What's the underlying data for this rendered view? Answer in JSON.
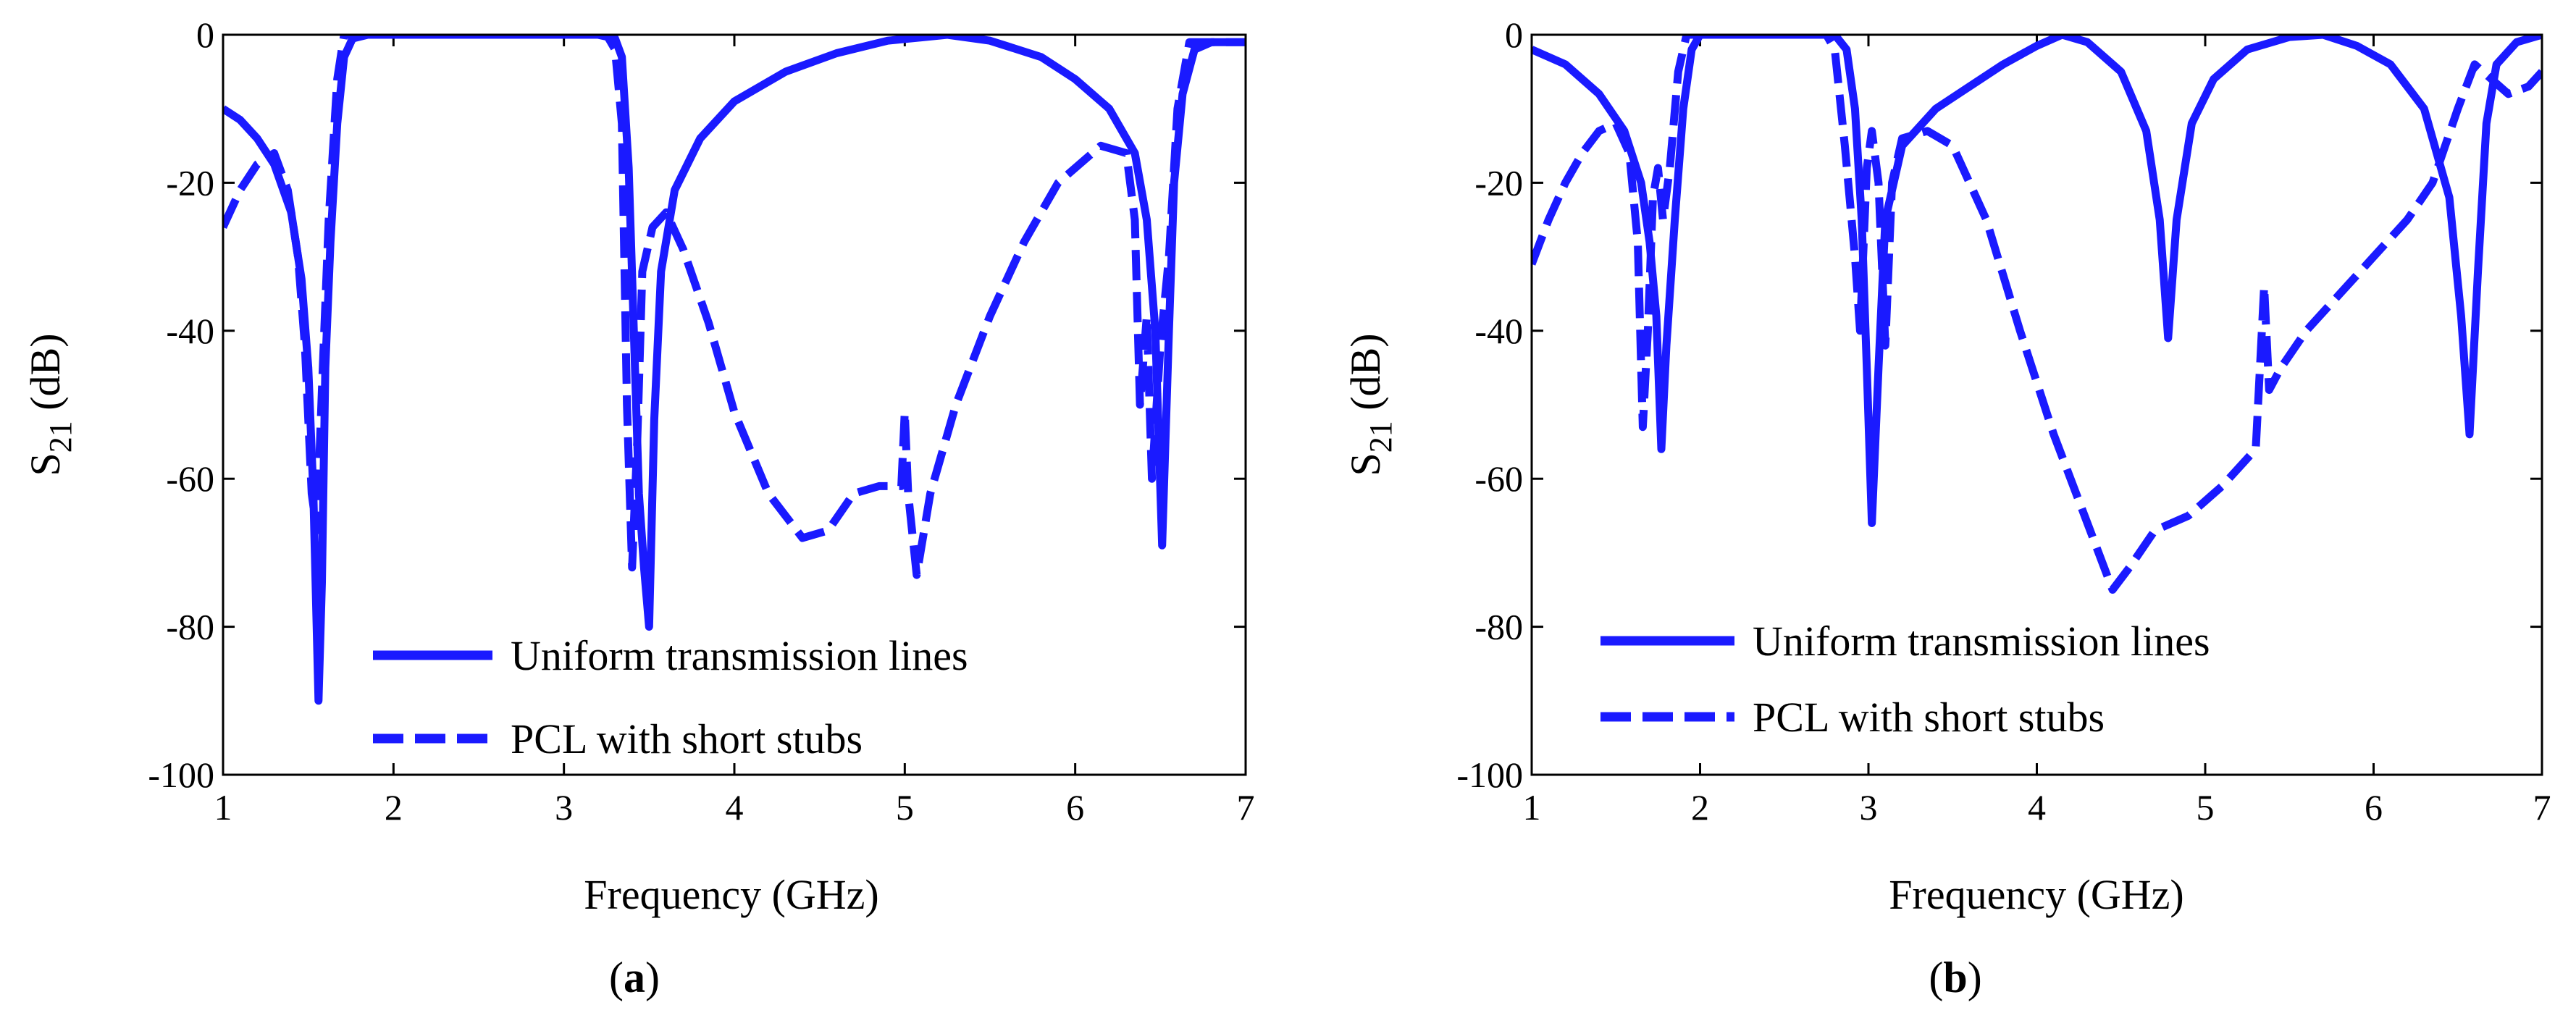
{
  "colors": {
    "series": "#1a1aff",
    "axis": "#000000",
    "background": "#ffffff"
  },
  "chart_data": [
    {
      "type": "line",
      "caption_open": "(",
      "caption": "a",
      "caption_close": ")",
      "xlabel": "Frequency (GHz)",
      "ylabel_main": "S",
      "ylabel_sub": "21",
      "ylabel_unit": " (dB)",
      "xlim": [
        1,
        7
      ],
      "ylim": [
        -100,
        0
      ],
      "xticks": [
        1,
        2,
        3,
        4,
        5,
        6,
        7
      ],
      "yticks": [
        0,
        -20,
        -40,
        -60,
        -80,
        -100
      ],
      "legend_position": "bottom-center",
      "series": [
        {
          "name": "Uniform transmission lines",
          "style": "solid",
          "points": [
            [
              1.0,
              -10
            ],
            [
              1.1,
              -11.5
            ],
            [
              1.2,
              -14
            ],
            [
              1.3,
              -17.5
            ],
            [
              1.4,
              -24
            ],
            [
              1.46,
              -33
            ],
            [
              1.5,
              -45
            ],
            [
              1.53,
              -62
            ],
            [
              1.56,
              -90
            ],
            [
              1.58,
              -74
            ],
            [
              1.6,
              -45
            ],
            [
              1.63,
              -28
            ],
            [
              1.67,
              -12
            ],
            [
              1.71,
              -3
            ],
            [
              1.76,
              -0.5
            ],
            [
              1.85,
              0
            ],
            [
              3.2,
              0
            ],
            [
              3.3,
              -0.5
            ],
            [
              3.34,
              -3
            ],
            [
              3.38,
              -18
            ],
            [
              3.41,
              -40
            ],
            [
              3.44,
              -62
            ],
            [
              3.47,
              -72
            ],
            [
              3.5,
              -80
            ],
            [
              3.53,
              -52
            ],
            [
              3.57,
              -32
            ],
            [
              3.65,
              -21
            ],
            [
              3.8,
              -14
            ],
            [
              4.0,
              -9
            ],
            [
              4.3,
              -5
            ],
            [
              4.6,
              -2.5
            ],
            [
              4.9,
              -0.8
            ],
            [
              5.25,
              0
            ],
            [
              5.5,
              -0.8
            ],
            [
              5.8,
              -3
            ],
            [
              6.0,
              -6
            ],
            [
              6.2,
              -10
            ],
            [
              6.35,
              -16
            ],
            [
              6.42,
              -25
            ],
            [
              6.47,
              -40
            ],
            [
              6.51,
              -69
            ],
            [
              6.55,
              -40
            ],
            [
              6.58,
              -20
            ],
            [
              6.63,
              -8
            ],
            [
              6.7,
              -2
            ],
            [
              6.8,
              -1
            ],
            [
              7.0,
              -1
            ]
          ]
        },
        {
          "name": "PCL with short stubs",
          "style": "dashed",
          "points": [
            [
              1.0,
              -26
            ],
            [
              1.1,
              -21
            ],
            [
              1.2,
              -17.5
            ],
            [
              1.3,
              -16
            ],
            [
              1.38,
              -21
            ],
            [
              1.44,
              -30
            ],
            [
              1.48,
              -42
            ],
            [
              1.52,
              -62
            ],
            [
              1.55,
              -67
            ],
            [
              1.58,
              -48
            ],
            [
              1.62,
              -25
            ],
            [
              1.67,
              -6
            ],
            [
              1.71,
              0
            ],
            [
              1.8,
              0
            ],
            [
              3.25,
              0
            ],
            [
              3.3,
              -2
            ],
            [
              3.34,
              -12
            ],
            [
              3.37,
              -50
            ],
            [
              3.4,
              -72
            ],
            [
              3.43,
              -55
            ],
            [
              3.46,
              -32
            ],
            [
              3.52,
              -26
            ],
            [
              3.6,
              -24
            ],
            [
              3.7,
              -29
            ],
            [
              3.85,
              -39
            ],
            [
              4.0,
              -51
            ],
            [
              4.2,
              -62
            ],
            [
              4.4,
              -68
            ],
            [
              4.55,
              -67
            ],
            [
              4.7,
              -62
            ],
            [
              4.85,
              -61
            ],
            [
              4.98,
              -61
            ],
            [
              5.0,
              -51
            ],
            [
              5.02,
              -62
            ],
            [
              5.07,
              -73
            ],
            [
              5.15,
              -62
            ],
            [
              5.3,
              -50
            ],
            [
              5.5,
              -38
            ],
            [
              5.7,
              -28
            ],
            [
              5.9,
              -20
            ],
            [
              6.15,
              -15
            ],
            [
              6.3,
              -16
            ],
            [
              6.35,
              -25
            ],
            [
              6.38,
              -50
            ],
            [
              6.42,
              -38
            ],
            [
              6.45,
              -60
            ],
            [
              6.5,
              -42
            ],
            [
              6.55,
              -30
            ],
            [
              6.6,
              -10
            ],
            [
              6.67,
              -1
            ],
            [
              6.75,
              -1
            ],
            [
              7.0,
              -1
            ]
          ]
        }
      ]
    },
    {
      "type": "line",
      "caption_open": "(",
      "caption": "b",
      "caption_close": ")",
      "xlabel": "Frequency (GHz)",
      "ylabel_main": "S",
      "ylabel_sub": "21",
      "ylabel_unit": " (dB)",
      "xlim": [
        1,
        7
      ],
      "ylim": [
        -100,
        0
      ],
      "xticks": [
        1,
        2,
        3,
        4,
        5,
        6,
        7
      ],
      "yticks": [
        0,
        -20,
        -40,
        -60,
        -80,
        -100
      ],
      "legend_position": "bottom-center",
      "series": [
        {
          "name": "Uniform transmission lines",
          "style": "solid",
          "points": [
            [
              1.0,
              -2
            ],
            [
              1.2,
              -4
            ],
            [
              1.4,
              -8
            ],
            [
              1.55,
              -13
            ],
            [
              1.65,
              -20
            ],
            [
              1.7,
              -28
            ],
            [
              1.74,
              -38
            ],
            [
              1.77,
              -56
            ],
            [
              1.8,
              -42
            ],
            [
              1.85,
              -25
            ],
            [
              1.9,
              -10
            ],
            [
              1.95,
              -2
            ],
            [
              2.0,
              0
            ],
            [
              2.8,
              0
            ],
            [
              2.87,
              -2
            ],
            [
              2.92,
              -10
            ],
            [
              2.96,
              -25
            ],
            [
              2.99,
              -45
            ],
            [
              3.02,
              -66
            ],
            [
              3.06,
              -45
            ],
            [
              3.1,
              -25
            ],
            [
              3.2,
              -15
            ],
            [
              3.4,
              -10
            ],
            [
              3.6,
              -7
            ],
            [
              3.8,
              -4
            ],
            [
              4.0,
              -1.5
            ],
            [
              4.15,
              0
            ],
            [
              4.3,
              -1
            ],
            [
              4.5,
              -5
            ],
            [
              4.65,
              -13
            ],
            [
              4.73,
              -25
            ],
            [
              4.78,
              -41
            ],
            [
              4.83,
              -25
            ],
            [
              4.92,
              -12
            ],
            [
              5.05,
              -6
            ],
            [
              5.25,
              -2
            ],
            [
              5.5,
              -0.3
            ],
            [
              5.7,
              0
            ],
            [
              5.9,
              -1.5
            ],
            [
              6.1,
              -4
            ],
            [
              6.3,
              -10
            ],
            [
              6.45,
              -22
            ],
            [
              6.52,
              -38
            ],
            [
              6.57,
              -54
            ],
            [
              6.62,
              -32
            ],
            [
              6.67,
              -12
            ],
            [
              6.73,
              -4
            ],
            [
              6.85,
              -1
            ],
            [
              7.0,
              0
            ]
          ]
        },
        {
          "name": "PCL with short stubs",
          "style": "dashed",
          "points": [
            [
              1.0,
              -31
            ],
            [
              1.1,
              -25
            ],
            [
              1.2,
              -20
            ],
            [
              1.3,
              -16
            ],
            [
              1.4,
              -13
            ],
            [
              1.5,
              -12
            ],
            [
              1.58,
              -16
            ],
            [
              1.63,
              -28
            ],
            [
              1.66,
              -53
            ],
            [
              1.69,
              -40
            ],
            [
              1.72,
              -22
            ],
            [
              1.75,
              -18
            ],
            [
              1.78,
              -25
            ],
            [
              1.82,
              -18
            ],
            [
              1.87,
              -5
            ],
            [
              1.92,
              0
            ],
            [
              2.0,
              0
            ],
            [
              2.75,
              0
            ],
            [
              2.8,
              -2
            ],
            [
              2.86,
              -15
            ],
            [
              2.92,
              -30
            ],
            [
              2.95,
              -40
            ],
            [
              2.99,
              -18
            ],
            [
              3.02,
              -13
            ],
            [
              3.06,
              -20
            ],
            [
              3.1,
              -42
            ],
            [
              3.14,
              -20
            ],
            [
              3.2,
              -14
            ],
            [
              3.35,
              -13
            ],
            [
              3.5,
              -15
            ],
            [
              3.7,
              -25
            ],
            [
              3.9,
              -40
            ],
            [
              4.1,
              -54
            ],
            [
              4.3,
              -66
            ],
            [
              4.45,
              -75
            ],
            [
              4.55,
              -72
            ],
            [
              4.7,
              -67
            ],
            [
              4.9,
              -65
            ],
            [
              5.1,
              -61
            ],
            [
              5.3,
              -56
            ],
            [
              5.35,
              -34
            ],
            [
              5.38,
              -48
            ],
            [
              5.45,
              -45
            ],
            [
              5.6,
              -40
            ],
            [
              5.8,
              -35
            ],
            [
              6.0,
              -30
            ],
            [
              6.2,
              -25
            ],
            [
              6.35,
              -20
            ],
            [
              6.5,
              -10
            ],
            [
              6.6,
              -4
            ],
            [
              6.7,
              -6
            ],
            [
              6.8,
              -8
            ],
            [
              6.92,
              -7
            ],
            [
              7.0,
              -5
            ]
          ]
        }
      ]
    }
  ]
}
